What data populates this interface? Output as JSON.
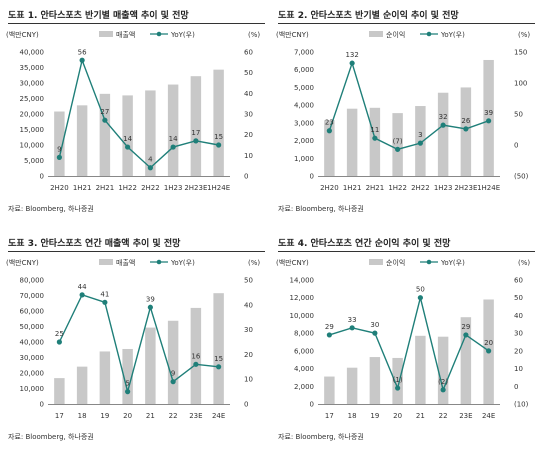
{
  "panels": [
    {
      "title": "도표 1. 안타스포츠 반기별 매출액 추이 및 전망",
      "source": "자료: Bloomberg, 하나증권",
      "chart_data": {
        "type": "bar",
        "categories": [
          "2H20",
          "1H21",
          "2H21",
          "1H22",
          "2H22",
          "1H23",
          "2H23E",
          "1H24E"
        ],
        "left_unit": "(백만CNY)",
        "right_unit": "(%)",
        "legend": [
          "매출액",
          "YoY(우)"
        ],
        "ylim": [
          0,
          40000
        ],
        "yticks": [
          0,
          5000,
          10000,
          15000,
          20000,
          25000,
          30000,
          35000,
          40000
        ],
        "yticklabels": [
          "0",
          "5,000",
          "10,000",
          "15,000",
          "20,000",
          "25,000",
          "30,000",
          "35,000",
          "40,000"
        ],
        "y2lim": [
          0,
          60
        ],
        "y2ticks": [
          0,
          10,
          20,
          30,
          40,
          50,
          60
        ],
        "y2ticklabels": [
          "0",
          "10",
          "20",
          "30",
          "40",
          "50",
          "60"
        ],
        "series": [
          {
            "name": "매출액",
            "kind": "bar",
            "axis": "left",
            "values": [
              20800,
              22800,
              26500,
              26000,
              27600,
              29500,
              32200,
              34300
            ]
          },
          {
            "name": "YoY(우)",
            "kind": "line",
            "axis": "right",
            "values": [
              9,
              56,
              27,
              14,
              4,
              14,
              17,
              15
            ],
            "labels": [
              "9",
              "56",
              "27",
              "14",
              "4",
              "14",
              "17",
              "15"
            ]
          }
        ]
      }
    },
    {
      "title": "도표 2. 안타스포츠 반기별 순이익 추이 및 전망",
      "source": "자료: Bloomberg, 하나증권",
      "chart_data": {
        "type": "bar",
        "categories": [
          "2H20",
          "1H21",
          "2H21",
          "1H22",
          "2H22",
          "1H23",
          "2H23E",
          "1H24E"
        ],
        "left_unit": "(백만CNY)",
        "right_unit": "(%)",
        "legend": [
          "순이익",
          "YoY(우)"
        ],
        "ylim": [
          0,
          7000
        ],
        "yticks": [
          0,
          1000,
          2000,
          3000,
          4000,
          5000,
          6000,
          7000
        ],
        "yticklabels": [
          "0",
          "1,000",
          "2,000",
          "3,000",
          "4,000",
          "5,000",
          "6,000",
          "7,000"
        ],
        "y2lim": [
          -50,
          150
        ],
        "y2ticks": [
          -50,
          0,
          50,
          100,
          150
        ],
        "y2ticklabels": [
          "(50)",
          "0",
          "50",
          "100",
          "150"
        ],
        "series": [
          {
            "name": "순이익",
            "kind": "bar",
            "axis": "left",
            "values": [
              3150,
              3800,
              3850,
              3550,
              3950,
              4700,
              5000,
              6550
            ]
          },
          {
            "name": "YoY(우)",
            "kind": "line",
            "axis": "right",
            "values": [
              23,
              132,
              11,
              -7,
              3,
              32,
              26,
              39
            ],
            "labels": [
              "23",
              "132",
              "11",
              "(7)",
              "3",
              "32",
              "26",
              "39"
            ]
          }
        ]
      }
    },
    {
      "title": "도표 3. 안타스포츠 연간 매출액 추이 및 전망",
      "source": "자료: Bloomberg, 하나증권",
      "chart_data": {
        "type": "bar",
        "categories": [
          "17",
          "18",
          "19",
          "20",
          "21",
          "22",
          "23E",
          "24E"
        ],
        "left_unit": "(백만CNY)",
        "right_unit": "(%)",
        "legend": [
          "매출액",
          "YoY(우)"
        ],
        "ylim": [
          0,
          80000
        ],
        "yticks": [
          0,
          10000,
          20000,
          30000,
          40000,
          50000,
          60000,
          70000,
          80000
        ],
        "yticklabels": [
          "0",
          "10,000",
          "20,000",
          "30,000",
          "40,000",
          "50,000",
          "60,000",
          "70,000",
          "80,000"
        ],
        "y2lim": [
          0,
          50
        ],
        "y2ticks": [
          0,
          10,
          20,
          30,
          40,
          50
        ],
        "y2ticklabels": [
          "0",
          "10",
          "20",
          "30",
          "40",
          "50"
        ],
        "series": [
          {
            "name": "매출액",
            "kind": "bar",
            "axis": "left",
            "values": [
              16700,
              24100,
              33900,
              35500,
              49300,
              53700,
              62000,
              71500
            ]
          },
          {
            "name": "YoY(우)",
            "kind": "line",
            "axis": "right",
            "values": [
              25,
              44,
              41,
              5,
              39,
              9,
              16,
              15
            ],
            "labels": [
              "25",
              "44",
              "41",
              "5",
              "39",
              "9",
              "16",
              "15"
            ]
          }
        ]
      }
    },
    {
      "title": "도표 4. 안타스포츠 연간 순이익 추이 및 전망",
      "source": "자료: Bloomberg, 하나증권",
      "chart_data": {
        "type": "bar",
        "categories": [
          "17",
          "18",
          "19",
          "20",
          "21",
          "22",
          "23E",
          "24E"
        ],
        "left_unit": "(백만CNY)",
        "right_unit": "(%)",
        "legend": [
          "순이익",
          "YoY(우)"
        ],
        "ylim": [
          0,
          14000
        ],
        "yticks": [
          0,
          2000,
          4000,
          6000,
          8000,
          10000,
          12000,
          14000
        ],
        "yticklabels": [
          "0",
          "2,000",
          "4,000",
          "6,000",
          "8,000",
          "10,000",
          "12,000",
          "14,000"
        ],
        "y2lim": [
          -10,
          60
        ],
        "y2ticks": [
          -10,
          0,
          10,
          20,
          30,
          40,
          50,
          60
        ],
        "y2ticklabels": [
          "(10)",
          "0",
          "10",
          "20",
          "30",
          "40",
          "50",
          "60"
        ],
        "series": [
          {
            "name": "순이익",
            "kind": "bar",
            "axis": "left",
            "values": [
              3100,
              4100,
              5300,
              5200,
              7700,
              7600,
              9800,
              11800
            ]
          },
          {
            "name": "YoY(우)",
            "kind": "line",
            "axis": "right",
            "values": [
              29,
              33,
              30,
              -1,
              50,
              -2,
              29,
              20
            ],
            "labels": [
              "29",
              "33",
              "30",
              "(1)",
              "50",
              "(2)",
              "29",
              "20"
            ]
          }
        ]
      }
    }
  ],
  "colors": {
    "bar": "#c8c8c8",
    "line": "#1f7f79",
    "axis": "#888888",
    "text": "#333333"
  }
}
